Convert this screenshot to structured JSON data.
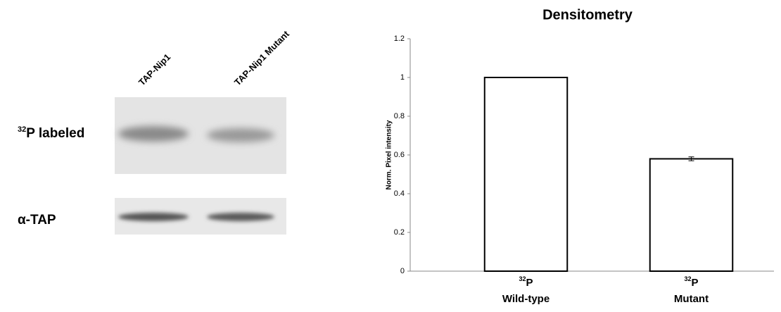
{
  "blot": {
    "lanes": [
      "TAP-Nip1",
      "TAP-Nip1 Mutant"
    ],
    "rows": [
      {
        "mass": "32",
        "label": "P labeled"
      },
      {
        "label": "α-TAP"
      }
    ]
  },
  "chart_data": {
    "type": "bar",
    "title": "Densitometry",
    "y_label": "Norm. Pixel intensity",
    "categories": [
      "Wild-type",
      "Mutant"
    ],
    "category_isotopes": [
      {
        "mass": "32",
        "element": "P"
      },
      {
        "mass": "32",
        "element": "P"
      }
    ],
    "values": [
      1,
      0.58
    ],
    "errors": [
      null,
      0.01
    ],
    "color": "#ffffff",
    "edge_color": "#000000",
    "ylim": [
      0,
      1.2
    ],
    "yticks": [
      0,
      0.2,
      0.4,
      0.6,
      0.8,
      1,
      1.2
    ],
    "grid": false
  }
}
